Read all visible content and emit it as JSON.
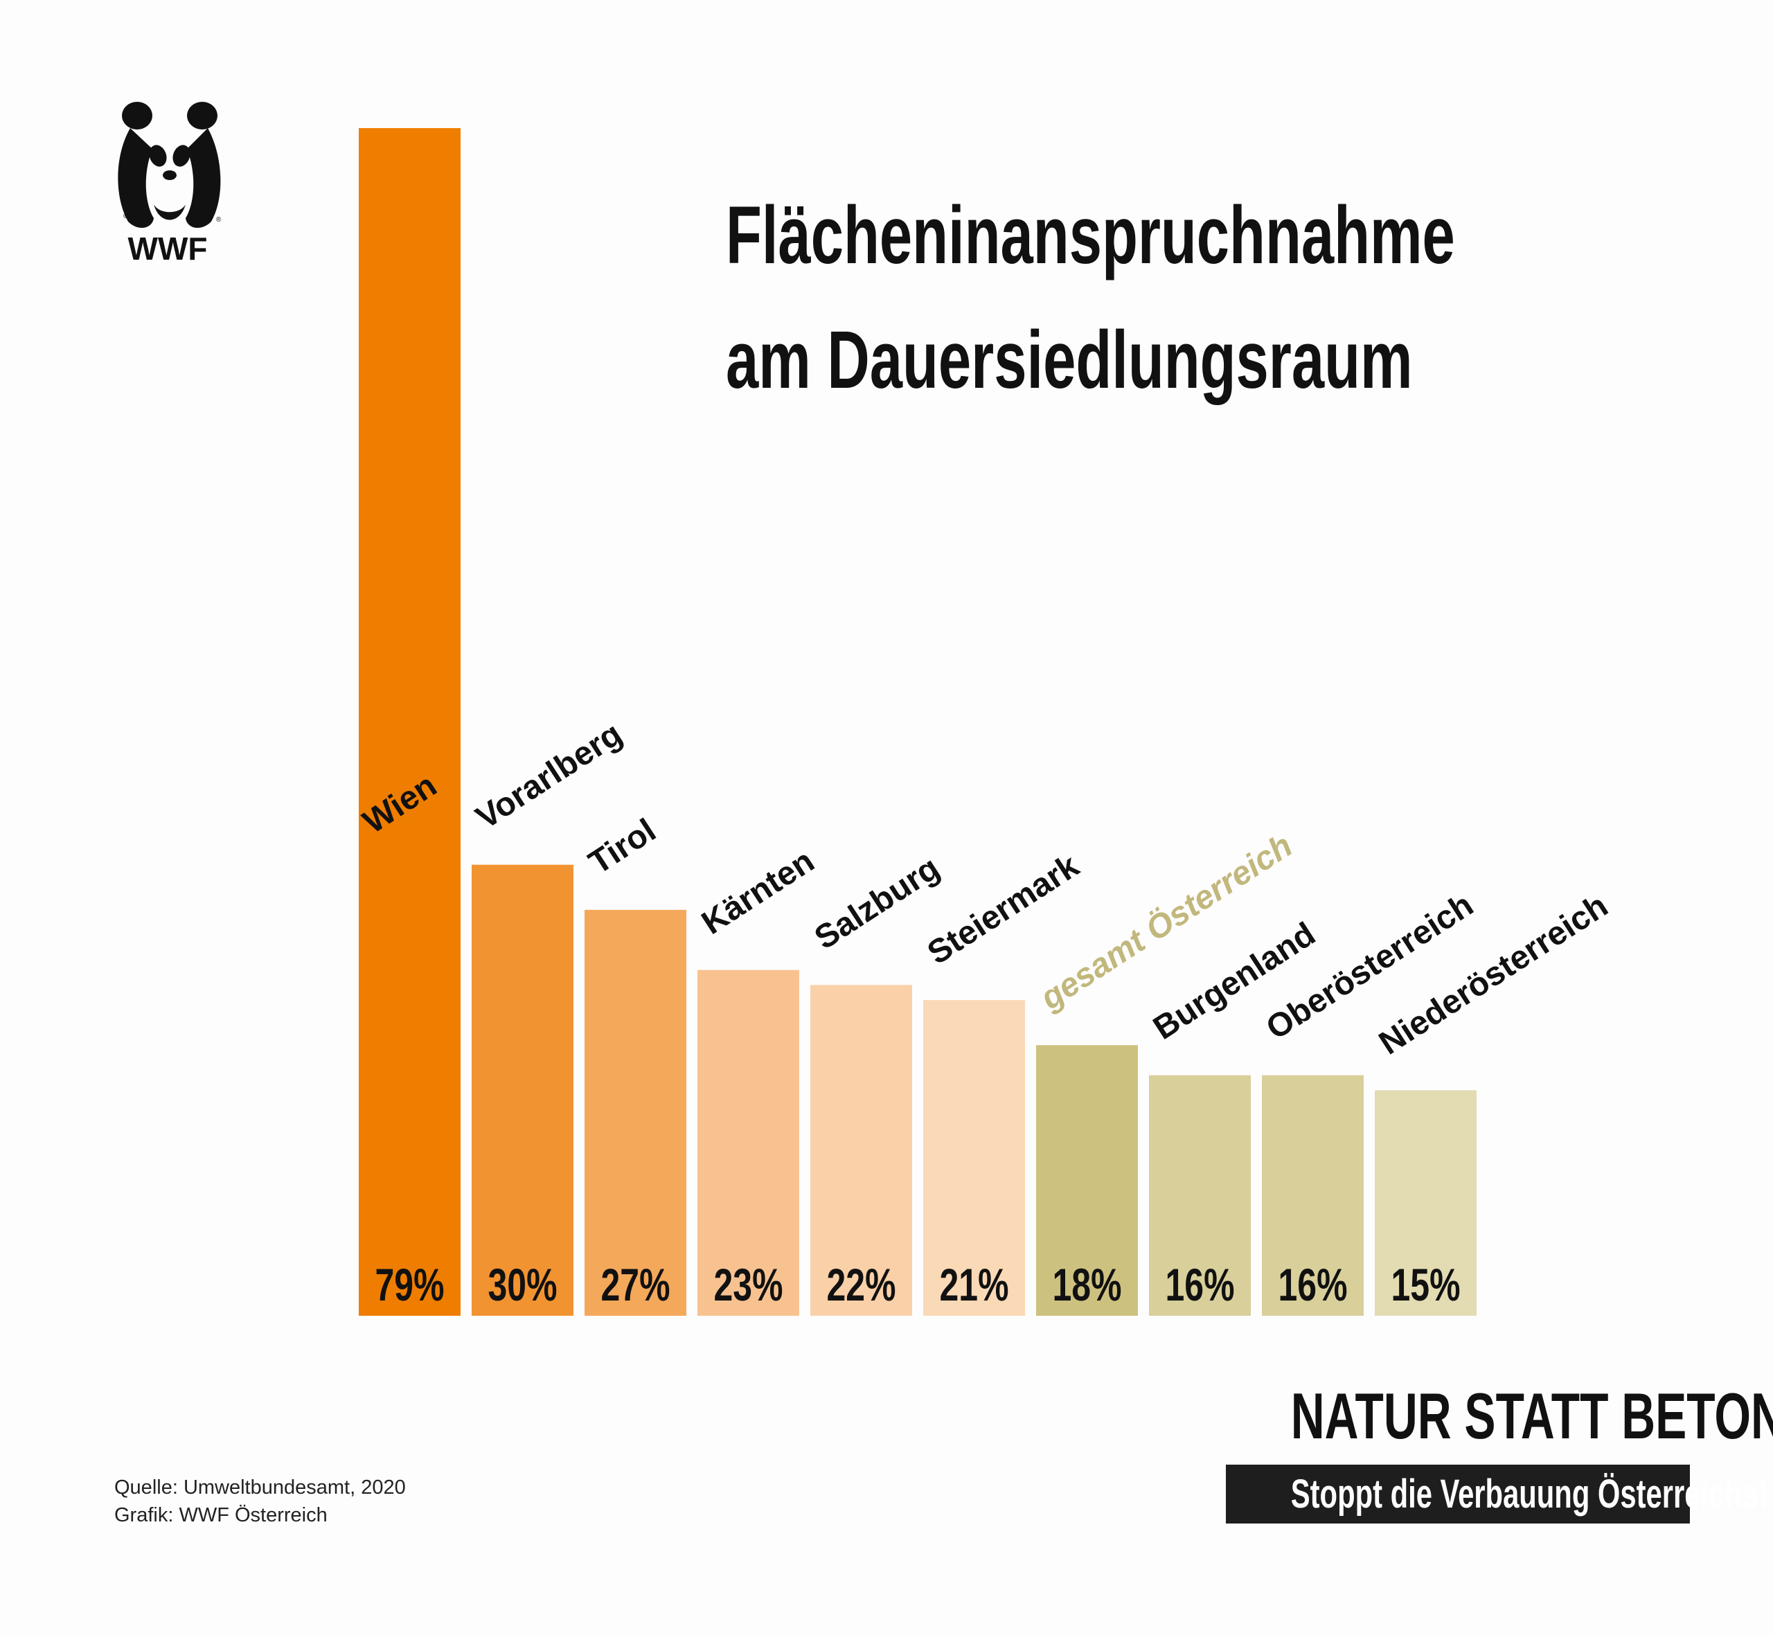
{
  "logo": {
    "text": "WWF"
  },
  "title": {
    "line1": "Flächeninanspruchnahme",
    "line2": "am Dauersiedlungsraum"
  },
  "chart_data": {
    "type": "bar",
    "title": "Flächeninanspruchnahme am Dauersiedlungsraum",
    "xlabel": "",
    "ylabel": "",
    "ylim": [
      0,
      79
    ],
    "categories": [
      "Wien",
      "Vorarlberg",
      "Tirol",
      "Kärnten",
      "Salzburg",
      "Steiermark",
      "gesamt Österreich",
      "Burgenland",
      "Oberösterreich",
      "Niederösterreich"
    ],
    "values": [
      79,
      30,
      27,
      23,
      22,
      21,
      18,
      16,
      16,
      15
    ],
    "value_labels": [
      "79%",
      "30%",
      "27%",
      "23%",
      "22%",
      "21%",
      "18%",
      "16%",
      "16%",
      "15%"
    ],
    "bar_colors": [
      "#ef7d00",
      "#f29331",
      "#f4a85a",
      "#f7c290",
      "#f9d0a8",
      "#fad9b6",
      "#cdc17f",
      "#d8cf9a",
      "#d8cf9a",
      "#e3dbb2"
    ],
    "label_colors": [
      "#111111",
      "#111111",
      "#111111",
      "#111111",
      "#111111",
      "#111111",
      "#c2b77c",
      "#111111",
      "#111111",
      "#111111"
    ],
    "grid": false,
    "legend": "none"
  },
  "source": {
    "line1": "Quelle: Umweltbundesamt, 2020",
    "line2": "Grafik: WWF Österreich"
  },
  "campaign": {
    "slogan": "NATUR STATT BETON",
    "subline": "Stoppt die Verbauung Österreichs!"
  }
}
